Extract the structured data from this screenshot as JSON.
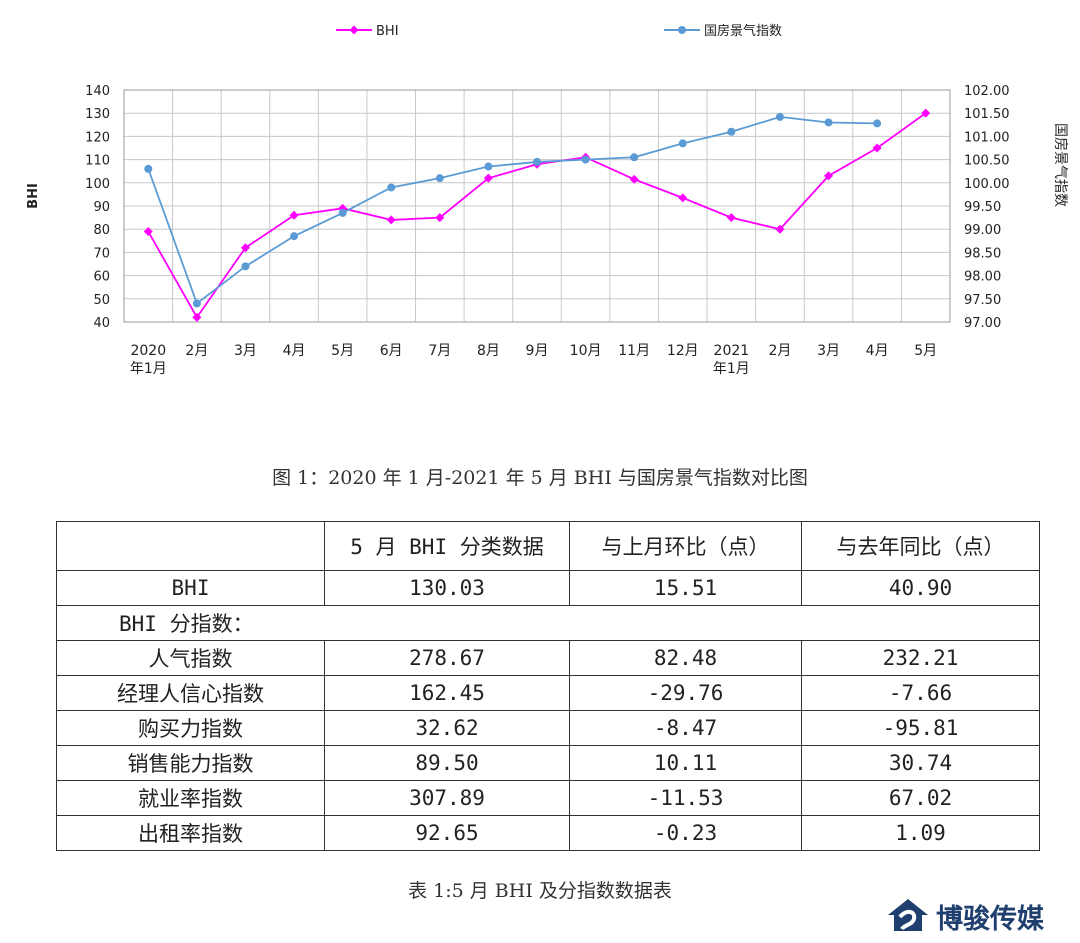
{
  "chart_data": {
    "type": "line",
    "categories": [
      "2020\n年1月",
      "2月",
      "3月",
      "4月",
      "5月",
      "6月",
      "7月",
      "8月",
      "9月",
      "10月",
      "11月",
      "12月",
      "2021\n年1月",
      "2月",
      "3月",
      "4月",
      "5月"
    ],
    "series": [
      {
        "name": "BHI",
        "axis": "left",
        "color": "#ff00ff",
        "values": [
          79,
          42,
          72,
          86,
          89,
          84,
          85,
          102,
          108,
          111,
          101.5,
          93.5,
          85,
          80,
          103,
          115,
          130.03
        ]
      },
      {
        "name": "国房景气指数",
        "axis": "right",
        "color": "#5b9bd5",
        "values": [
          100.3,
          97.4,
          98.2,
          98.85,
          99.35,
          99.9,
          100.1,
          100.35,
          100.45,
          100.5,
          100.55,
          100.85,
          101.1,
          101.42,
          101.3,
          101.28,
          null
        ]
      }
    ],
    "ylabel": "BHI",
    "y2label": "国房景气指数",
    "ylim": [
      40,
      140
    ],
    "yticks": [
      "140",
      "130",
      "120",
      "110",
      "100",
      "90",
      "80",
      "70",
      "60",
      "50",
      "40"
    ],
    "y2lim": [
      97,
      102
    ],
    "y2ticks": [
      "102.00",
      "101.50",
      "101.00",
      "100.50",
      "100.00",
      "99.50",
      "99.00",
      "98.50",
      "98.00",
      "97.50",
      "97.00"
    ],
    "grid": true,
    "legend_position": "top"
  },
  "figure_caption": "图 1：2020 年 1 月-2021 年 5 月 BHI 与国房景气指数对比图",
  "table": {
    "headers": [
      "",
      "5 月 BHI 分类数据",
      "与上月环比（点）",
      "与去年同比（点）"
    ],
    "bhi_row": [
      "BHI",
      "130.03",
      "15.51",
      "40.90"
    ],
    "subheader": "BHI 分指数：",
    "rows": [
      [
        "人气指数",
        "278.67",
        "82.48",
        "232.21"
      ],
      [
        "经理人信心指数",
        "162.45",
        "-29.76",
        "-7.66"
      ],
      [
        "购买力指数",
        "32.62",
        "-8.47",
        "-95.81"
      ],
      [
        "销售能力指数",
        "89.50",
        "10.11",
        "30.74"
      ],
      [
        "就业率指数",
        "307.89",
        "-11.53",
        "67.02"
      ],
      [
        "出租率指数",
        "92.65",
        "-0.23",
        "1.09"
      ]
    ]
  },
  "table_caption": "表 1:5 月 BHI 及分指数数据表",
  "logo": {
    "text": "博骏传媒",
    "icon": "house-logo-icon",
    "color": "#1f3f6e"
  }
}
